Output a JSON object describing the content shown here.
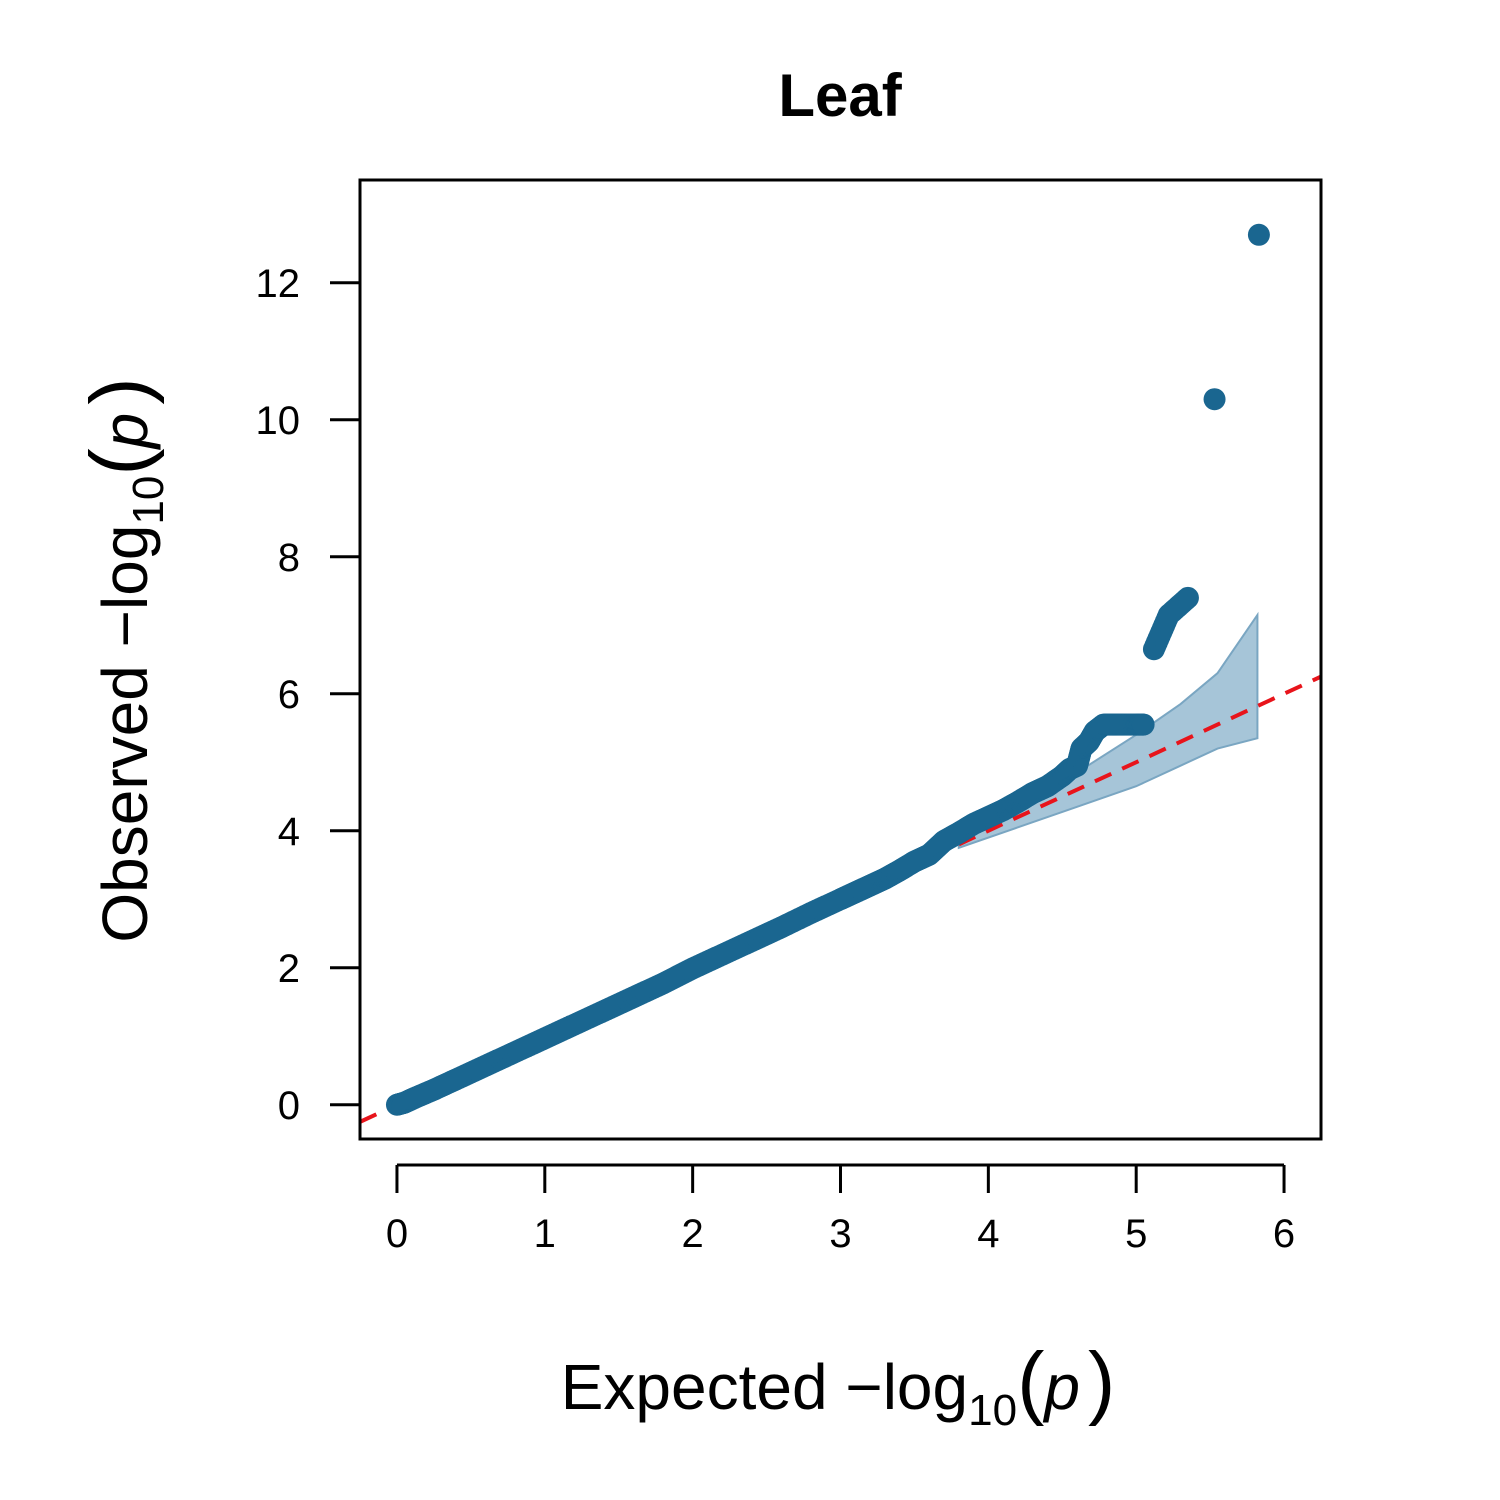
{
  "chart_data": {
    "type": "scatter",
    "title": "Leaf",
    "xlabel": {
      "prefix": "Expected  −log",
      "sub": "10",
      "open": "(",
      "var": "p",
      "close": ")"
    },
    "ylabel": {
      "prefix": "Observed  −log",
      "sub": "10",
      "open": "(",
      "var": "p",
      "close": ")"
    },
    "xlim": [
      -0.25,
      6.25
    ],
    "ylim": [
      -0.5,
      13.5
    ],
    "x_ticks": [
      0,
      1,
      2,
      3,
      4,
      5,
      6
    ],
    "y_ticks": [
      0,
      2,
      4,
      6,
      8,
      10,
      12
    ],
    "grid": false,
    "colors": {
      "points": "#1a6690",
      "band_fill": "#a6c5d8",
      "band_stroke": "#7aa6c2",
      "reference_line": "#e8141b"
    },
    "reference_line": {
      "style": "dashed",
      "slope": 1,
      "intercept": 0
    },
    "confidence_band": {
      "x": [
        3.8,
        4.2,
        4.6,
        5.0,
        5.3,
        5.55,
        5.82
      ],
      "upper": [
        3.85,
        4.35,
        4.85,
        5.4,
        5.85,
        6.3,
        7.15
      ],
      "lower": [
        3.75,
        4.05,
        4.35,
        4.65,
        4.95,
        5.2,
        5.35
      ]
    },
    "series": [
      {
        "points": [
          [
            0.0,
            0.0
          ],
          [
            0.05,
            0.03
          ],
          [
            0.12,
            0.1
          ],
          [
            0.25,
            0.22
          ],
          [
            0.4,
            0.37
          ],
          [
            0.6,
            0.57
          ],
          [
            0.8,
            0.77
          ],
          [
            1.0,
            0.97
          ],
          [
            1.2,
            1.17
          ],
          [
            1.4,
            1.37
          ],
          [
            1.6,
            1.57
          ],
          [
            1.8,
            1.77
          ],
          [
            2.0,
            1.99
          ],
          [
            2.2,
            2.19
          ],
          [
            2.4,
            2.39
          ],
          [
            2.6,
            2.59
          ],
          [
            2.8,
            2.8
          ],
          [
            3.0,
            3.0
          ],
          [
            3.1,
            3.1
          ],
          [
            3.2,
            3.2
          ],
          [
            3.3,
            3.3
          ],
          [
            3.4,
            3.42
          ],
          [
            3.5,
            3.55
          ],
          [
            3.6,
            3.65
          ],
          [
            3.7,
            3.85
          ],
          [
            3.8,
            3.97
          ],
          [
            3.9,
            4.1
          ],
          [
            4.0,
            4.2
          ],
          [
            4.1,
            4.3
          ],
          [
            4.2,
            4.42
          ],
          [
            4.3,
            4.55
          ],
          [
            4.4,
            4.65
          ],
          [
            4.5,
            4.8
          ],
          [
            4.55,
            4.9
          ],
          [
            4.6,
            4.95
          ],
          [
            4.63,
            5.2
          ],
          [
            4.68,
            5.3
          ],
          [
            4.72,
            5.45
          ],
          [
            4.78,
            5.55
          ],
          [
            4.85,
            5.55
          ],
          [
            4.92,
            5.55
          ],
          [
            5.0,
            5.55
          ],
          [
            5.05,
            5.55
          ],
          [
            5.12,
            6.65
          ],
          [
            5.22,
            7.15
          ],
          [
            5.35,
            7.4
          ],
          [
            5.53,
            10.3
          ],
          [
            5.83,
            12.7
          ]
        ]
      }
    ]
  }
}
